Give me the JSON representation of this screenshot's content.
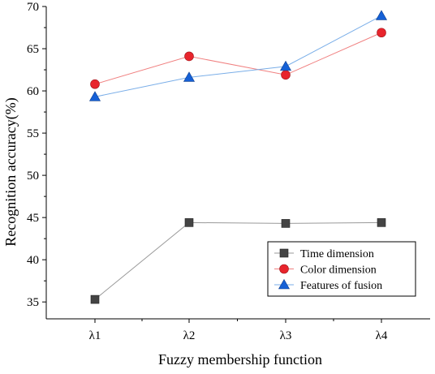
{
  "chart_data": {
    "type": "line",
    "categories": [
      "λ1",
      "λ2",
      "λ3",
      "λ4"
    ],
    "xlabel": "Fuzzy membership function",
    "ylabel": "Recognition accuracy(%)",
    "ylim": [
      33,
      70
    ],
    "yticks": [
      35,
      40,
      45,
      50,
      55,
      60,
      65,
      70
    ],
    "grid": false,
    "legend_position": "bottom-right",
    "series": [
      {
        "name": "Time dimension",
        "marker": "square",
        "color": "#999999",
        "marker_color": "#444444",
        "values": [
          35.3,
          44.4,
          44.3,
          44.4
        ]
      },
      {
        "name": "Color dimension",
        "marker": "circle",
        "color": "#f08080",
        "marker_color": "#e8242c",
        "values": [
          60.8,
          64.1,
          61.9,
          66.9
        ]
      },
      {
        "name": "Features of fusion",
        "marker": "triangle",
        "color": "#7aaee8",
        "marker_color": "#1560d6",
        "values": [
          59.3,
          61.6,
          62.9,
          68.9
        ]
      }
    ]
  }
}
